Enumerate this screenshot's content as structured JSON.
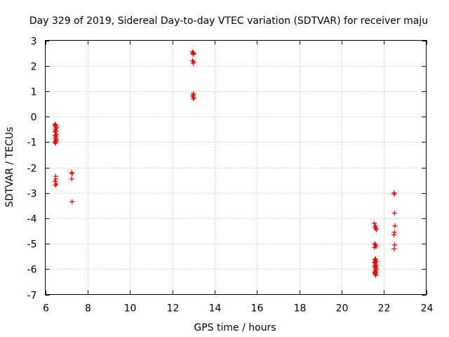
{
  "chart_data": {
    "type": "scatter",
    "title": "Day 329 of 2019, Sidereal Day-to-day VTEC variation (SDTVAR) for receiver maju",
    "xlabel": "GPS time / hours",
    "ylabel": "SDTVAR / TECUs",
    "xlim": [
      6,
      24
    ],
    "ylim": [
      -7,
      3
    ],
    "xticks": [
      6,
      8,
      10,
      12,
      14,
      16,
      18,
      20,
      22,
      24
    ],
    "yticks": [
      -7,
      -6,
      -5,
      -4,
      -3,
      -2,
      -1,
      0,
      1,
      2,
      3
    ],
    "grid": true,
    "marker": "plus",
    "marker_color": "#e00000",
    "series": [
      {
        "x": [
          6.45,
          6.47,
          6.5,
          6.52,
          6.48,
          6.5,
          6.46,
          6.53,
          6.49,
          6.51,
          6.47,
          6.52,
          6.5,
          6.45,
          6.48,
          6.53,
          6.5,
          6.47,
          6.51,
          6.49,
          6.5,
          6.46,
          6.52,
          6.48,
          6.5,
          6.5,
          7.25,
          7.27,
          7.25,
          7.27,
          12.95,
          12.98,
          13.0,
          13.02,
          12.96,
          13.01,
          12.99,
          13.0,
          12.97,
          13.02,
          13.0,
          12.98,
          13.0,
          21.55,
          21.6,
          21.58,
          21.62,
          21.65,
          21.57,
          21.6,
          21.63,
          21.56,
          21.61,
          21.59,
          21.64,
          21.58,
          21.6,
          21.62,
          21.57,
          21.6,
          21.63,
          21.59,
          21.61,
          21.58,
          21.6,
          21.62,
          21.56,
          21.64,
          21.6,
          21.58,
          21.61,
          21.6,
          21.59,
          22.48,
          22.5,
          22.5,
          22.52,
          22.5,
          22.48,
          22.51,
          22.49
        ],
        "y": [
          -0.3,
          -0.35,
          -0.4,
          -0.45,
          -0.5,
          -0.55,
          -0.6,
          -0.7,
          -0.75,
          -0.8,
          -0.85,
          -0.9,
          -0.95,
          -1.0,
          -1.05,
          -0.4,
          -0.6,
          -0.75,
          -0.95,
          -2.35,
          -2.45,
          -2.55,
          -2.65,
          -2.7,
          -0.33,
          -1.0,
          -2.2,
          -2.25,
          -2.45,
          -3.35,
          2.55,
          2.5,
          2.45,
          2.5,
          2.2,
          2.15,
          2.1,
          0.85,
          0.8,
          0.75,
          0.7,
          2.5,
          0.9,
          -4.2,
          -4.3,
          -4.35,
          -4.4,
          -4.45,
          -5.0,
          -5.05,
          -5.1,
          -5.15,
          -5.6,
          -5.65,
          -5.7,
          -5.75,
          -5.8,
          -5.85,
          -5.9,
          -5.95,
          -6.0,
          -6.05,
          -6.1,
          -6.15,
          -6.2,
          -6.25,
          -5.72,
          -5.95,
          -6.18,
          -5.62,
          -6.05,
          -5.88,
          -6.12,
          -3.0,
          -3.05,
          -3.8,
          -4.3,
          -4.55,
          -4.65,
          -5.05,
          -5.2
        ]
      }
    ]
  }
}
